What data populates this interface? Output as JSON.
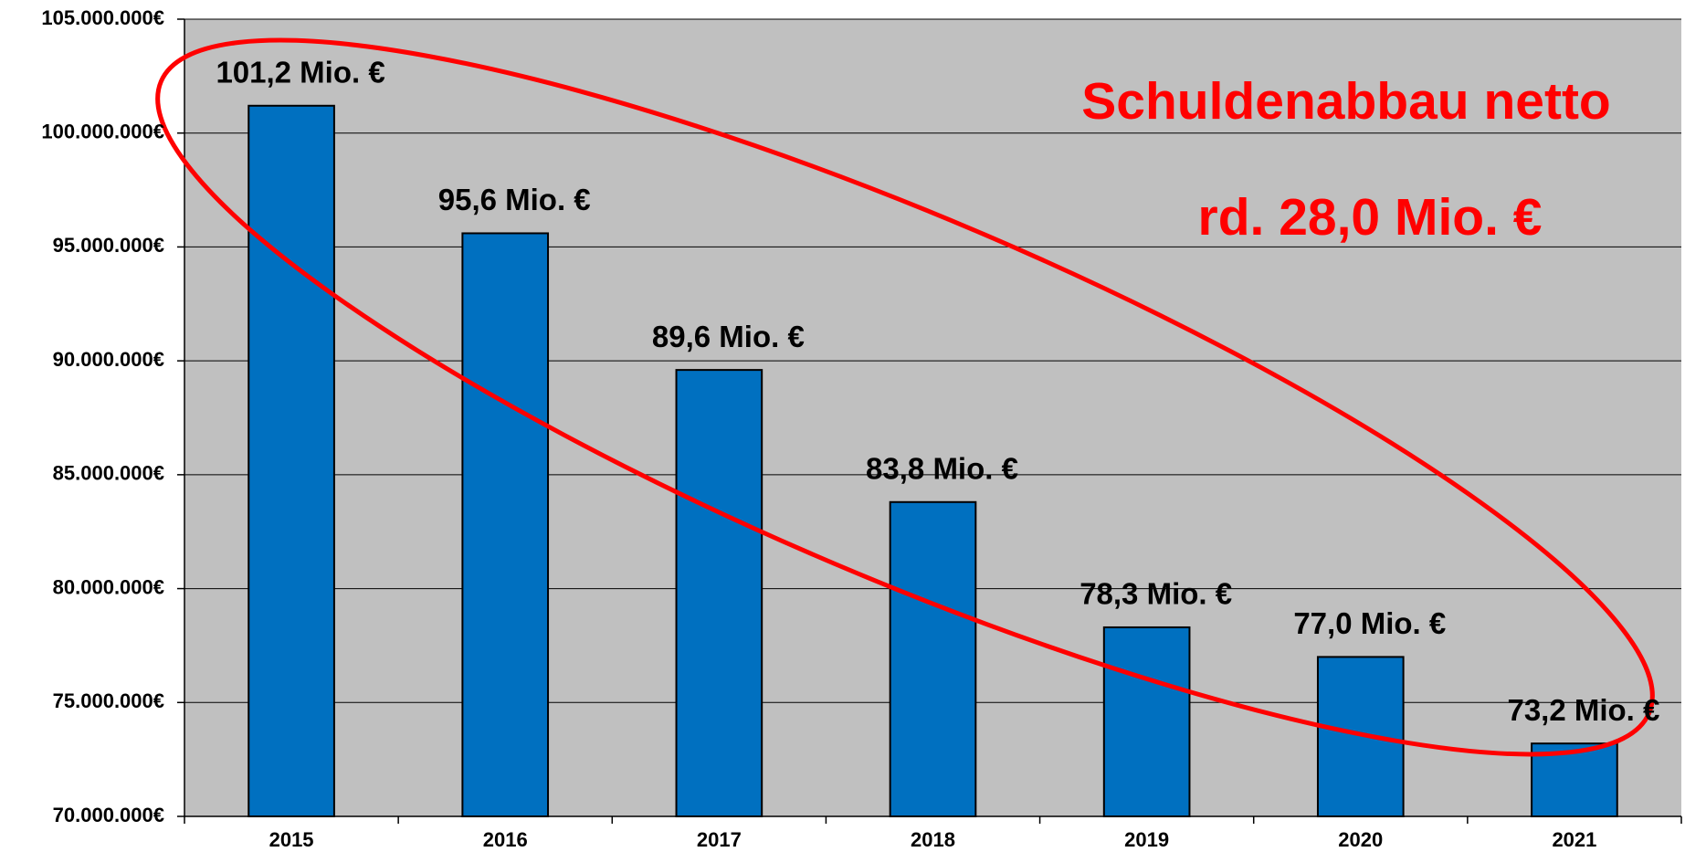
{
  "chart_data": {
    "type": "bar",
    "categories": [
      "2015",
      "2016",
      "2017",
      "2018",
      "2019",
      "2020",
      "2021"
    ],
    "values": [
      101200000,
      95600000,
      89600000,
      83800000,
      78300000,
      77000000,
      73200000
    ],
    "value_labels": [
      "101,2 Mio. €",
      "95,6 Mio. €",
      "89,6 Mio. €",
      "83,8 Mio. €",
      "78,3 Mio. €",
      "77,0 Mio. €",
      "73,2 Mio. €"
    ],
    "color": "#0070c0",
    "ylim": [
      70000000,
      105000000
    ],
    "yticks": [
      {
        "value": 70000000,
        "label": "70.000.000€"
      },
      {
        "value": 75000000,
        "label": "75.000.000€"
      },
      {
        "value": 80000000,
        "label": "80.000.000€"
      },
      {
        "value": 85000000,
        "label": "85.000.000€"
      },
      {
        "value": 90000000,
        "label": "90.000.000€"
      },
      {
        "value": 95000000,
        "label": "95.000.000€"
      },
      {
        "value": 100000000,
        "label": "100.000.000€"
      },
      {
        "value": 105000000,
        "label": "105.000.000€"
      }
    ],
    "grid": true,
    "annotations": [
      "Schuldenabbau netto",
      "rd. 28,0 Mio. €"
    ]
  }
}
